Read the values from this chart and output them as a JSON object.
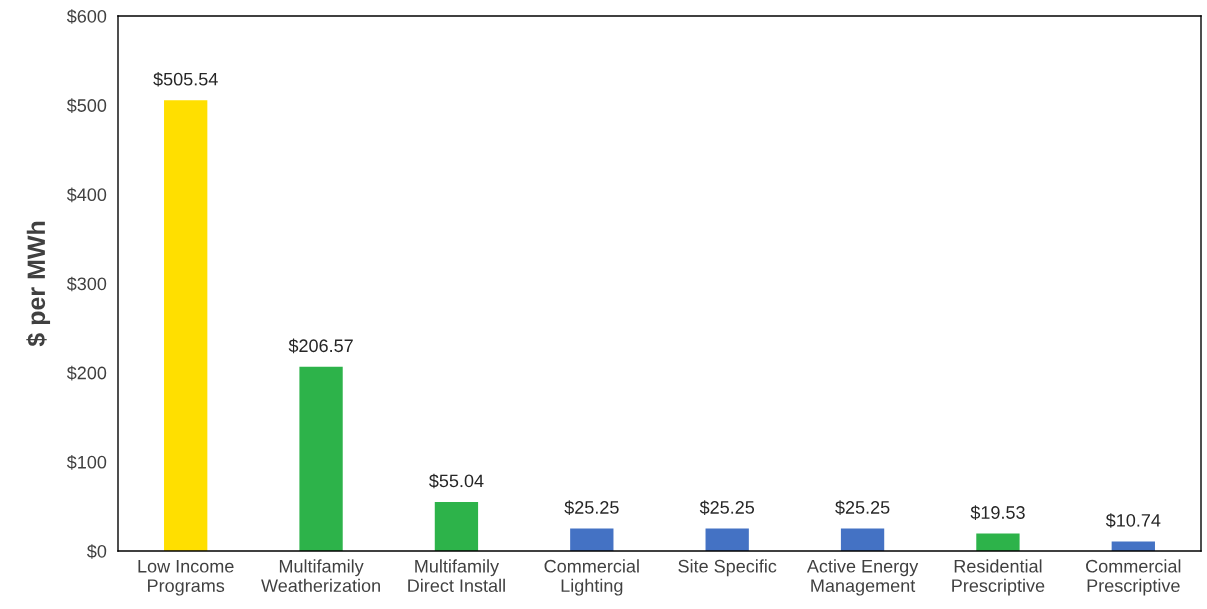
{
  "chart_data": {
    "type": "bar",
    "ylabel": "$ per MWh",
    "categories": [
      "Low Income\nPrograms",
      "Multifamily\nWeatherization",
      "Multifamily\nDirect Install",
      "Commercial\nLighting",
      "Site Specific",
      "Active Energy\nManagement",
      "Residential\nPrescriptive",
      "Commercial\nPrescriptive"
    ],
    "values": [
      505.54,
      206.57,
      55.04,
      25.25,
      25.25,
      25.25,
      19.53,
      10.74
    ],
    "colors": [
      "#ffdf00",
      "#2db34a",
      "#2db34a",
      "#4472c4",
      "#4472c4",
      "#4472c4",
      "#2db34a",
      "#4472c4"
    ],
    "value_labels": [
      "$505.54",
      "$206.57",
      "$55.04",
      "$25.25",
      "$25.25",
      "$25.25",
      "$19.53",
      "$10.74"
    ],
    "ylim": [
      0,
      600
    ],
    "yticks": [
      {
        "value": 0,
        "label": "$0"
      },
      {
        "value": 100,
        "label": "$100"
      },
      {
        "value": 200,
        "label": "$200"
      },
      {
        "value": 300,
        "label": "$300"
      },
      {
        "value": 400,
        "label": "$400"
      },
      {
        "value": 500,
        "label": "$500"
      },
      {
        "value": 600,
        "label": "$600"
      }
    ],
    "grid": false,
    "legend": false
  }
}
